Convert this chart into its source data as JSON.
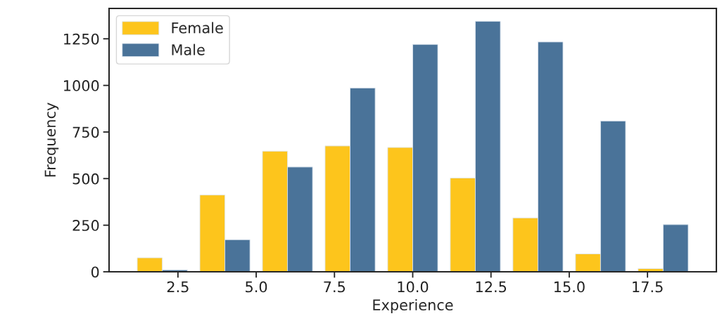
{
  "chart_data": {
    "type": "histogram",
    "xlabel": "Experience",
    "ylabel": "Frequency",
    "bins": [
      1,
      3,
      5,
      7,
      9,
      11,
      13,
      15,
      17,
      19
    ],
    "series": [
      {
        "name": "Female",
        "color": "#fdc51c",
        "values": [
          75,
          412,
          647,
          675,
          667,
          503,
          289,
          96,
          17
        ]
      },
      {
        "name": "Male",
        "color": "#4a7399",
        "values": [
          10,
          172,
          562,
          986,
          1220,
          1344,
          1233,
          809,
          253
        ]
      }
    ],
    "xlim": [
      0.3,
      19.7
    ],
    "xticks": [
      {
        "value": 2.5,
        "label": "2.5"
      },
      {
        "value": 5,
        "label": "5.0"
      },
      {
        "value": 7.5,
        "label": "7.5"
      },
      {
        "value": 10,
        "label": "10.0"
      },
      {
        "value": 12.5,
        "label": "12.5"
      },
      {
        "value": 15,
        "label": "15.0"
      },
      {
        "value": 17.5,
        "label": "17.5"
      }
    ],
    "ylim": [
      0,
      1413
    ],
    "yticks": [
      0,
      250,
      500,
      750,
      1000,
      1250
    ],
    "grid": false,
    "legend": "top left"
  }
}
